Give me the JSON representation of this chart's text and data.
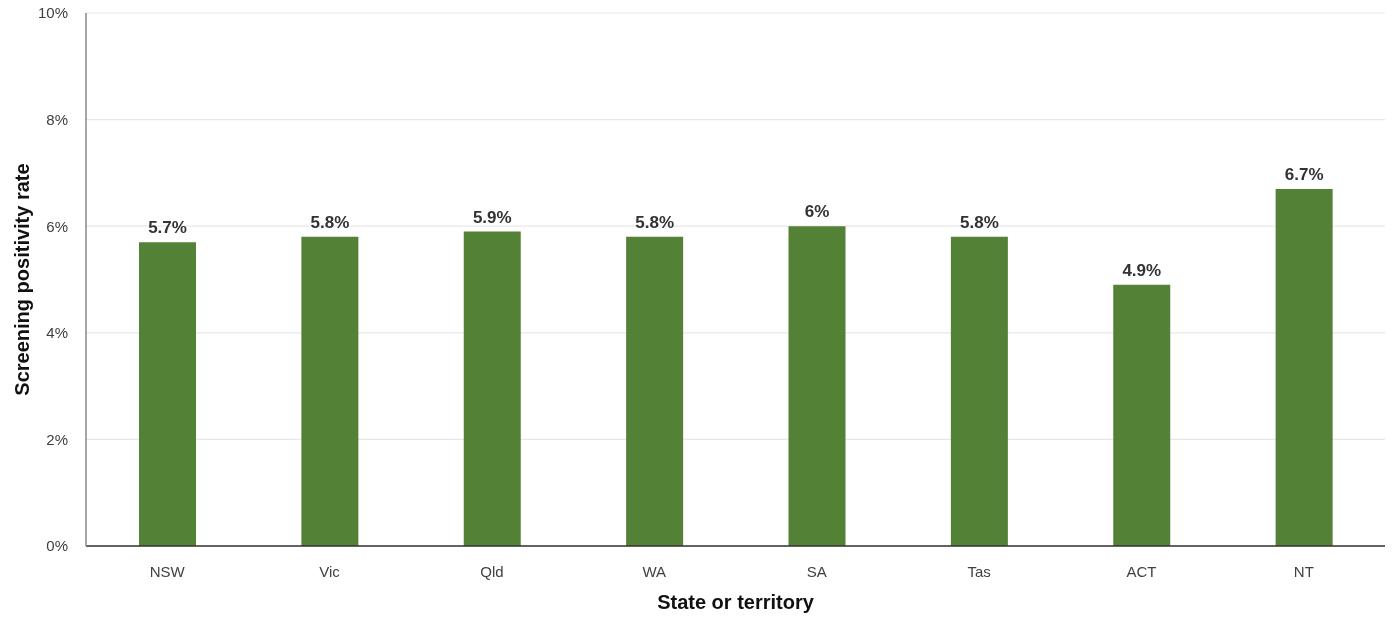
{
  "chart_data": {
    "type": "bar",
    "xlabel": "State or territory",
    "ylabel": "Screening positivity rate",
    "categories": [
      "NSW",
      "Vic",
      "Qld",
      "WA",
      "SA",
      "Tas",
      "ACT",
      "NT"
    ],
    "values": [
      5.7,
      5.8,
      5.9,
      5.8,
      6,
      5.8,
      4.9,
      6.7
    ],
    "value_labels": [
      "5.7%",
      "5.8%",
      "5.9%",
      "5.8%",
      "6%",
      "5.8%",
      "4.9%",
      "6.7%"
    ],
    "color": "#538135",
    "ylim": [
      0,
      10
    ],
    "yticks": [
      {
        "value": 0,
        "label": "0%"
      },
      {
        "value": 2,
        "label": "2%"
      },
      {
        "value": 4,
        "label": "4%"
      },
      {
        "value": 6,
        "label": "6%"
      },
      {
        "value": 8,
        "label": "8%"
      },
      {
        "value": 10,
        "label": "10%"
      }
    ],
    "grid": "y"
  }
}
